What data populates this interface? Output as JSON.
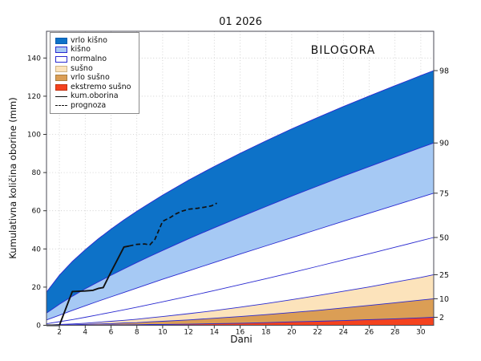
{
  "figure": {
    "title": "01 2026",
    "station_label": "BILOGORA",
    "xlabel": "Dani",
    "ylabel": "Kumulativna količina oborine (mm)"
  },
  "legend": {
    "items": [
      {
        "label": "vrlo kišno",
        "swatch": "patch",
        "color": "#0d72c8",
        "border": "#0a5cb0"
      },
      {
        "label": "kišno",
        "swatch": "patch",
        "color": "#a6c9f4",
        "border": "#2a2ad0"
      },
      {
        "label": "normalno",
        "swatch": "patch",
        "color": "#ffffff",
        "border": "#2a2ad0"
      },
      {
        "label": "sušno",
        "swatch": "patch",
        "color": "#fce3bb",
        "border": "#cdb488"
      },
      {
        "label": "vrlo sušno",
        "swatch": "patch",
        "color": "#db9e55",
        "border": "#a87f42"
      },
      {
        "label": "ekstremo sušno",
        "swatch": "patch",
        "color": "#f4421e",
        "border": "#c23212"
      },
      {
        "label": "kum.oborina",
        "swatch": "line",
        "color": "#111111"
      },
      {
        "label": "prognoza",
        "swatch": "dashed-line",
        "color": "#111111"
      }
    ]
  },
  "colors": {
    "boundary_line": "#2a2ad0",
    "grid": "#c9c9c9",
    "spine": "#4a4a55",
    "tick": "#333333",
    "text": "#111111",
    "observed_line": "#111111",
    "forecast_line": "#111111"
  },
  "chart_data": {
    "type": "area",
    "title": "01 2026",
    "station": "BILOGORA",
    "xlabel": "Dani",
    "ylabel": "Kumulativna količina oborine (mm)",
    "xlim": [
      1,
      31
    ],
    "ylim": [
      0,
      154
    ],
    "x_ticks": [
      2,
      4,
      6,
      8,
      10,
      12,
      14,
      16,
      18,
      20,
      22,
      24,
      26,
      28,
      30
    ],
    "y_ticks": [
      0,
      20,
      40,
      60,
      80,
      100,
      120,
      140
    ],
    "grid": "dotted",
    "legend_position": "upper left",
    "percentile_days": [
      1,
      2,
      3,
      4,
      5,
      6,
      7,
      8,
      9,
      10,
      12,
      14,
      16,
      18,
      20,
      22,
      24,
      26,
      28,
      30,
      31
    ],
    "percentiles": {
      "p98": [
        17.4,
        26.2,
        33.4,
        39.6,
        45.2,
        50.4,
        55.2,
        59.7,
        64.0,
        68.2,
        76.0,
        83.2,
        90.1,
        96.6,
        102.9,
        108.8,
        114.6,
        120.1,
        125.5,
        130.8,
        133.4
      ],
      "p90": [
        6.4,
        11.0,
        15.2,
        19.1,
        22.7,
        26.2,
        29.6,
        32.9,
        36.1,
        39.2,
        45.3,
        51.1,
        56.7,
        62.2,
        67.7,
        72.9,
        78.1,
        83.1,
        88.1,
        93.1,
        95.5
      ],
      "p75": [
        2.8,
        5.3,
        7.8,
        10.2,
        12.6,
        14.9,
        17.2,
        19.5,
        21.8,
        24.1,
        28.5,
        32.9,
        37.3,
        41.6,
        45.9,
        50.2,
        54.5,
        58.7,
        62.9,
        67.1,
        69.2
      ],
      "p50": [
        0.8,
        1.9,
        3.0,
        4.2,
        5.5,
        6.8,
        8.1,
        9.5,
        10.9,
        12.3,
        15.2,
        18.2,
        21.3,
        24.4,
        27.6,
        30.9,
        34.2,
        37.5,
        40.9,
        44.3,
        46.0
      ],
      "p25": [
        0.1,
        0.4,
        0.7,
        1.1,
        1.6,
        2.1,
        2.6,
        3.2,
        3.9,
        4.6,
        6.1,
        7.7,
        9.5,
        11.4,
        13.4,
        15.6,
        17.8,
        20.1,
        22.6,
        25.1,
        26.5
      ],
      "p10": [
        0.0,
        0.1,
        0.3,
        0.5,
        0.7,
        0.9,
        1.2,
        1.4,
        1.8,
        2.1,
        2.8,
        3.7,
        4.6,
        5.6,
        6.7,
        7.8,
        9.1,
        10.4,
        11.8,
        13.2,
        13.9
      ],
      "p2": [
        0.0,
        0.0,
        0.0,
        0.1,
        0.1,
        0.2,
        0.2,
        0.3,
        0.4,
        0.4,
        0.6,
        0.9,
        1.1,
        1.4,
        1.8,
        2.1,
        2.5,
        3.0,
        3.4,
        3.9,
        4.2
      ]
    },
    "bands": [
      {
        "name": "vrlo kišno",
        "upper": "p98",
        "lower": "p90",
        "color": "#0d72c8"
      },
      {
        "name": "kišno",
        "upper": "p90",
        "lower": "p75",
        "color": "#a6c9f4"
      },
      {
        "name": "normalno",
        "upper": "p75",
        "lower": "p25",
        "color": "#ffffff"
      },
      {
        "name": "sušno",
        "upper": "p25",
        "lower": "p10",
        "color": "#fce3bb"
      },
      {
        "name": "vrlo sušno",
        "upper": "p10",
        "lower": "p2",
        "color": "#db9e55"
      },
      {
        "name": "ekstremo sušno",
        "upper": "p2",
        "lower": "zero",
        "color": "#f4421e"
      }
    ],
    "boundary_lines": [
      "p98",
      "p90",
      "p75",
      "p50",
      "p25",
      "p10",
      "p2"
    ],
    "right_axis_labels": [
      {
        "label": "98",
        "value_mm": 133.4
      },
      {
        "label": "90",
        "value_mm": 95.5
      },
      {
        "label": "75",
        "value_mm": 69.2
      },
      {
        "label": "50",
        "value_mm": 46.0
      },
      {
        "label": "25",
        "value_mm": 26.5
      },
      {
        "label": "10",
        "value_mm": 13.9
      },
      {
        "label": "2",
        "value_mm": 4.2
      }
    ],
    "observed": {
      "name": "kum.oborina",
      "x": [
        1,
        2,
        3,
        4,
        4.6,
        5,
        5.4,
        6,
        6.5,
        7,
        7.4
      ],
      "y": [
        0,
        0,
        17.7,
        18.0,
        18.3,
        19.3,
        19.8,
        28.0,
        34.5,
        41.0,
        41.5
      ]
    },
    "forecast": {
      "name": "prognoza",
      "x": [
        7.4,
        8,
        8.6,
        9,
        9.4,
        10,
        10.6,
        11,
        11.5,
        12,
        12.7,
        13.2,
        13.8,
        14.2
      ],
      "y": [
        41.5,
        42.4,
        42.6,
        42.1,
        45.0,
        54.5,
        56.5,
        58.3,
        59.8,
        60.8,
        61.3,
        61.8,
        62.6,
        64.0
      ]
    }
  }
}
